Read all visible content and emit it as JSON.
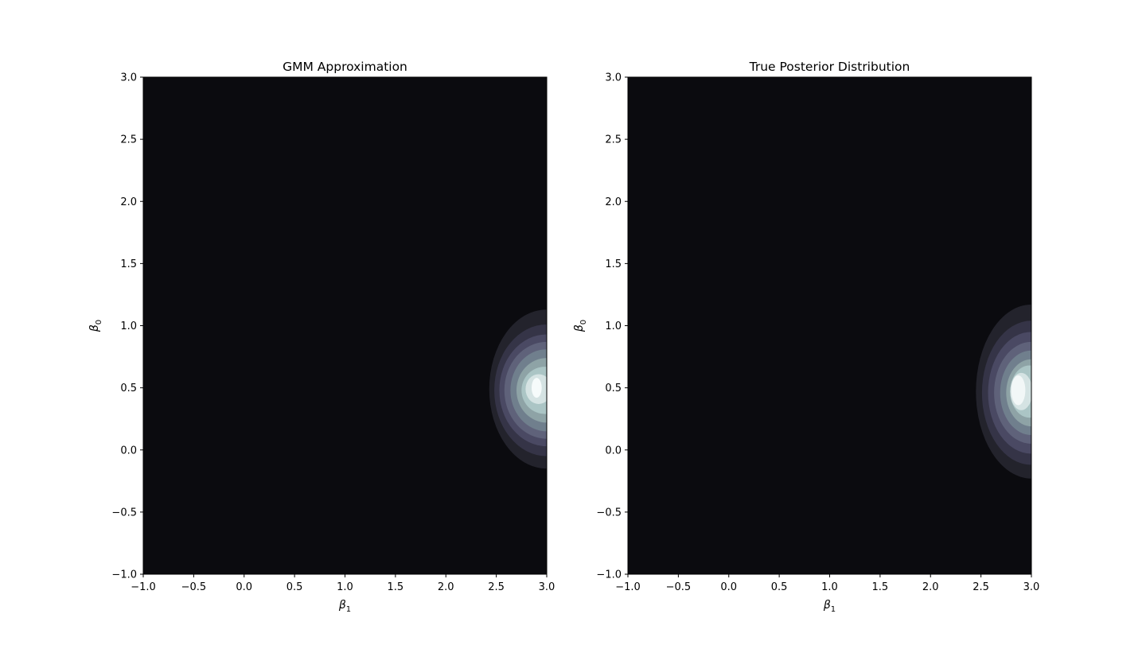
{
  "chart_data": [
    {
      "type": "contour",
      "title": "GMM Approximation",
      "xlabel": "β1",
      "ylabel": "β0",
      "xlim": [
        -1.0,
        3.0
      ],
      "ylim": [
        -1.0,
        3.0
      ],
      "x_ticks": [
        "−1.0",
        "−0.5",
        "0.0",
        "0.5",
        "1.0",
        "1.5",
        "2.0",
        "2.5",
        "3.0"
      ],
      "y_ticks": [
        "−1.0",
        "−0.5",
        "0.0",
        "0.5",
        "1.0",
        "1.5",
        "2.0",
        "2.5",
        "3.0"
      ],
      "x_tick_values": [
        -1.0,
        -0.5,
        0.0,
        0.5,
        1.0,
        1.5,
        2.0,
        2.5,
        3.0
      ],
      "y_tick_values": [
        -1.0,
        -0.5,
        0.0,
        0.5,
        1.0,
        1.5,
        2.0,
        2.5,
        3.0
      ],
      "colormap": "bone",
      "background_color": "#0b0b0f",
      "peak": {
        "x": 2.9,
        "y": 0.5
      },
      "levels": [
        {
          "rx": 0.57,
          "ry": 0.64,
          "cx": 3.0,
          "cy": 0.49,
          "color": "#23232c"
        },
        {
          "rx": 0.52,
          "ry": 0.53,
          "cx": 3.0,
          "cy": 0.48,
          "color": "#353447"
        },
        {
          "rx": 0.47,
          "ry": 0.45,
          "cx": 3.0,
          "cy": 0.48,
          "color": "#4a4963"
        },
        {
          "rx": 0.42,
          "ry": 0.39,
          "cx": 3.0,
          "cy": 0.48,
          "color": "#5f627a"
        },
        {
          "rx": 0.36,
          "ry": 0.33,
          "cx": 3.0,
          "cy": 0.48,
          "color": "#707f8d"
        },
        {
          "rx": 0.3,
          "ry": 0.26,
          "cx": 3.0,
          "cy": 0.48,
          "color": "#8ea3a6"
        },
        {
          "rx": 0.23,
          "ry": 0.19,
          "cx": 2.98,
          "cy": 0.48,
          "color": "#abc5c5"
        },
        {
          "rx": 0.13,
          "ry": 0.12,
          "cx": 2.92,
          "cy": 0.49,
          "color": "#d5e3e3"
        },
        {
          "rx": 0.05,
          "ry": 0.08,
          "cx": 2.9,
          "cy": 0.5,
          "color": "#f6fbfb"
        }
      ]
    },
    {
      "type": "contour",
      "title": "True Posterior Distribution",
      "xlabel": "β1",
      "ylabel": "β0",
      "xlim": [
        -1.0,
        3.0
      ],
      "ylim": [
        -1.0,
        3.0
      ],
      "x_ticks": [
        "−1.0",
        "−0.5",
        "0.0",
        "0.5",
        "1.0",
        "1.5",
        "2.0",
        "2.5",
        "3.0"
      ],
      "y_ticks": [
        "−1.0",
        "−0.5",
        "0.0",
        "0.5",
        "1.0",
        "1.5",
        "2.0",
        "2.5",
        "3.0"
      ],
      "x_tick_values": [
        -1.0,
        -0.5,
        0.0,
        0.5,
        1.0,
        1.5,
        2.0,
        2.5,
        3.0
      ],
      "y_tick_values": [
        -1.0,
        -0.5,
        0.0,
        0.5,
        1.0,
        1.5,
        2.0,
        2.5,
        3.0
      ],
      "colormap": "bone",
      "background_color": "#0b0b0f",
      "peak": {
        "x": 2.87,
        "y": 0.48
      },
      "levels": [
        {
          "rx": 0.55,
          "ry": 0.7,
          "cx": 3.0,
          "cy": 0.47,
          "color": "#23232c"
        },
        {
          "rx": 0.49,
          "ry": 0.58,
          "cx": 3.0,
          "cy": 0.46,
          "color": "#353447"
        },
        {
          "rx": 0.43,
          "ry": 0.49,
          "cx": 3.0,
          "cy": 0.46,
          "color": "#4a4963"
        },
        {
          "rx": 0.37,
          "ry": 0.41,
          "cx": 3.0,
          "cy": 0.46,
          "color": "#5f627a"
        },
        {
          "rx": 0.31,
          "ry": 0.34,
          "cx": 3.0,
          "cy": 0.46,
          "color": "#707f8d"
        },
        {
          "rx": 0.25,
          "ry": 0.27,
          "cx": 3.0,
          "cy": 0.46,
          "color": "#8ea3a6"
        },
        {
          "rx": 0.19,
          "ry": 0.21,
          "cx": 2.98,
          "cy": 0.47,
          "color": "#abc5c5"
        },
        {
          "rx": 0.11,
          "ry": 0.15,
          "cx": 2.9,
          "cy": 0.47,
          "color": "#d5e3e3"
        },
        {
          "rx": 0.07,
          "ry": 0.12,
          "cx": 2.87,
          "cy": 0.48,
          "color": "#f2f7f7"
        }
      ]
    }
  ]
}
